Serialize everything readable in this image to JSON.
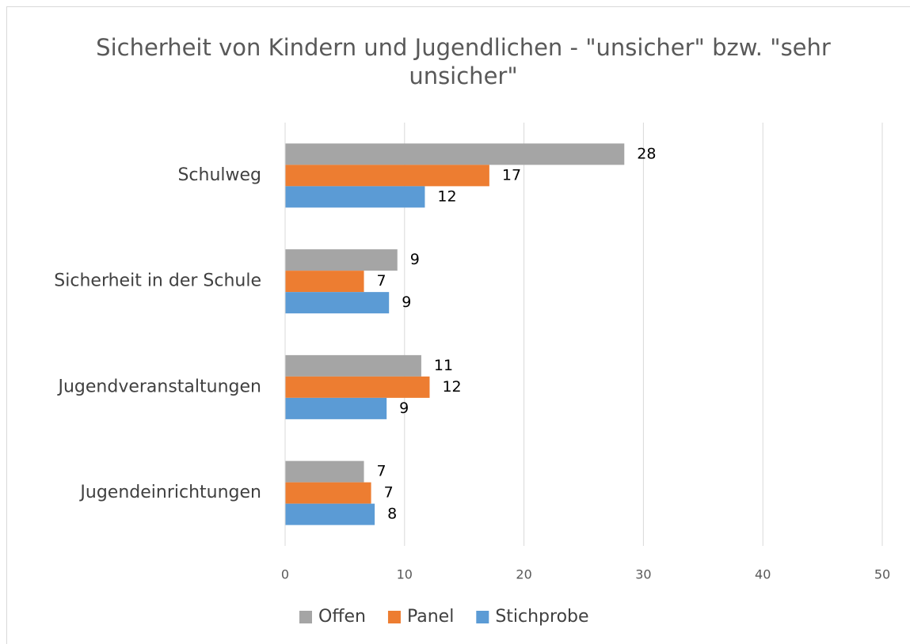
{
  "chart_data": {
    "type": "bar",
    "orientation": "horizontal",
    "title": "Sicherheit von Kindern und Jugendlichen - \"unsicher\" bzw. \"sehr unsicher\"",
    "categories": [
      "Schulweg",
      "Sicherheit in der Schule",
      "Jugendveranstaltungen",
      "Jugendeinrichtungen"
    ],
    "series": [
      {
        "name": "Offen",
        "color": "#a5a5a5",
        "values": [
          28.4,
          9.4,
          11.4,
          6.6
        ],
        "value_labels": [
          "28",
          "9",
          "11",
          "7"
        ]
      },
      {
        "name": "Panel",
        "color": "#ed7d31",
        "values": [
          17.1,
          6.6,
          12.1,
          7.2
        ],
        "value_labels": [
          "17",
          "7",
          "12",
          "7"
        ]
      },
      {
        "name": "Stichprobe",
        "color": "#5b9bd5",
        "values": [
          11.7,
          8.7,
          8.5,
          7.5
        ],
        "value_labels": [
          "12",
          "9",
          "9",
          "8"
        ]
      }
    ],
    "xlim": [
      0,
      50
    ],
    "xticks": [
      0,
      10,
      20,
      30,
      40,
      50
    ],
    "grid": true,
    "legend": "bottom"
  }
}
